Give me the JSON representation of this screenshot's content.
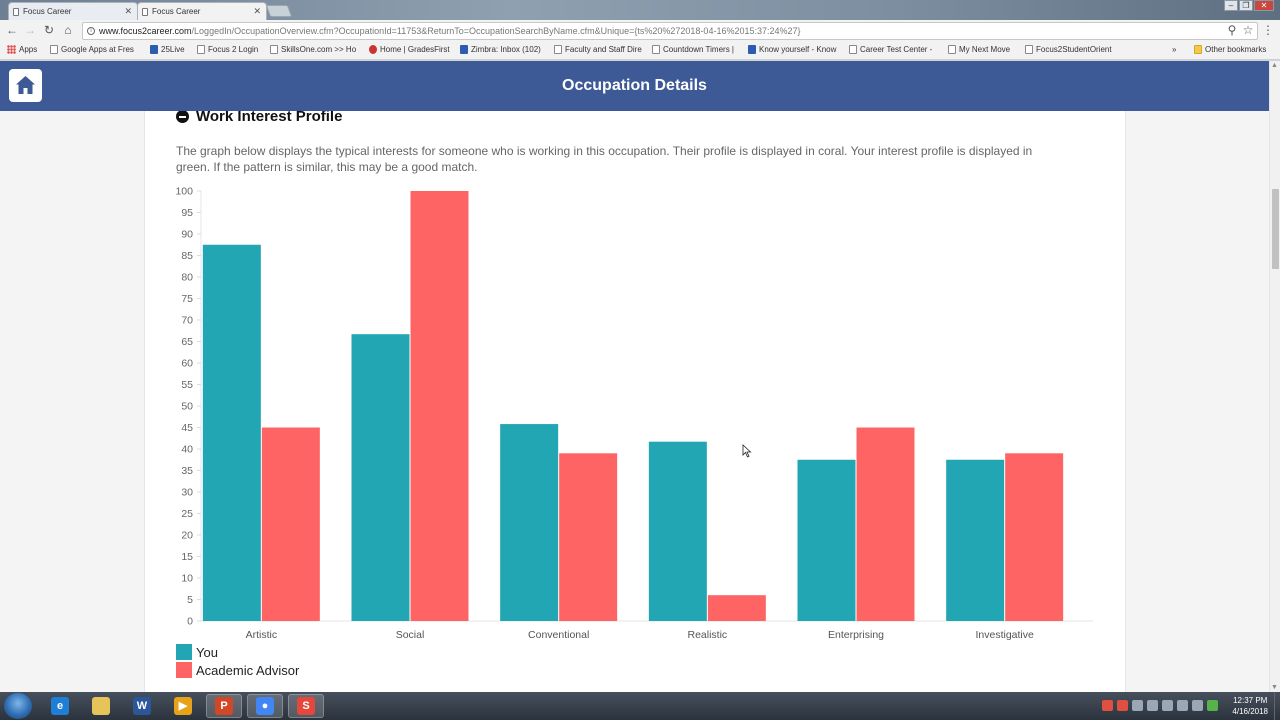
{
  "browser": {
    "tabs": [
      {
        "title": "Focus Career",
        "active": false
      },
      {
        "title": "Focus Career",
        "active": true
      }
    ],
    "url_main": "www.focus2career.com",
    "url_rest": "/LoggedIn/OccupationOverview.cfm?OccupationId=11753&ReturnTo=OccupationSearchByName.cfm&Unique={ts%20%272018-04-16%2015:37:24%27}",
    "bookmarks": [
      {
        "label": "Apps",
        "icon": "apps-icon"
      },
      {
        "label": "Google Apps at Fres",
        "icon": "google-icon"
      },
      {
        "label": "25Live",
        "icon": "page-icon"
      },
      {
        "label": "Focus 2 Login",
        "icon": "page-icon"
      },
      {
        "label": "SkillsOne.com >> Ho",
        "icon": "page-icon"
      },
      {
        "label": "Home | GradesFirst",
        "icon": "gradesfirst-icon"
      },
      {
        "label": "Zimbra: Inbox (102)",
        "icon": "zimbra-icon"
      },
      {
        "label": "Faculty and Staff Dire",
        "icon": "page-icon"
      },
      {
        "label": "Countdown Timers |",
        "icon": "wordpress-icon"
      },
      {
        "label": "Know yourself - Know",
        "icon": "linkedin-icon"
      },
      {
        "label": "Career Test Center -",
        "icon": "page-icon"
      },
      {
        "label": "My Next Move",
        "icon": "onet-icon"
      },
      {
        "label": "Focus2StudentOrient",
        "icon": "page-icon"
      }
    ],
    "other_bookmarks": "Other bookmarks"
  },
  "header": {
    "title": "Occupation Details"
  },
  "section": {
    "title": "Work Interest Profile",
    "description": "The graph below displays the typical interests for someone who is working in this occupation. Their profile is displayed in coral. Your interest profile is displayed in green. If the pattern is similar, this may be a good match."
  },
  "chart_data": {
    "type": "bar",
    "categories": [
      "Artistic",
      "Social",
      "Conventional",
      "Realistic",
      "Enterprising",
      "Investigative"
    ],
    "series": [
      {
        "name": "You",
        "color": "#23a6b3",
        "values": [
          87.5,
          66.7,
          45.8,
          41.7,
          37.5,
          37.5
        ]
      },
      {
        "name": "Academic Advisor",
        "color": "#fe6463",
        "values": [
          45,
          100,
          39,
          6,
          45,
          39
        ]
      }
    ],
    "ylim": [
      0,
      100
    ],
    "yticks": [
      0,
      5,
      10,
      15,
      20,
      25,
      30,
      35,
      40,
      45,
      50,
      55,
      60,
      65,
      70,
      75,
      80,
      85,
      90,
      95,
      100
    ],
    "grid": false,
    "legend_position": "bottom-left"
  },
  "taskbar": {
    "apps": [
      {
        "name": "internet-explorer",
        "color": "#1f7fd6",
        "glyph": "e"
      },
      {
        "name": "file-explorer",
        "color": "#e7c45a",
        "glyph": ""
      },
      {
        "name": "word",
        "color": "#2b579a",
        "glyph": "W"
      },
      {
        "name": "media-player",
        "color": "#e8a21a",
        "glyph": "▶"
      },
      {
        "name": "powerpoint",
        "color": "#d24726",
        "glyph": "P"
      },
      {
        "name": "chrome",
        "color": "#4285f4",
        "glyph": "●"
      },
      {
        "name": "snagit",
        "color": "#e4473c",
        "glyph": "S"
      }
    ],
    "time": "12:37 PM",
    "date": "4/16/2018"
  }
}
